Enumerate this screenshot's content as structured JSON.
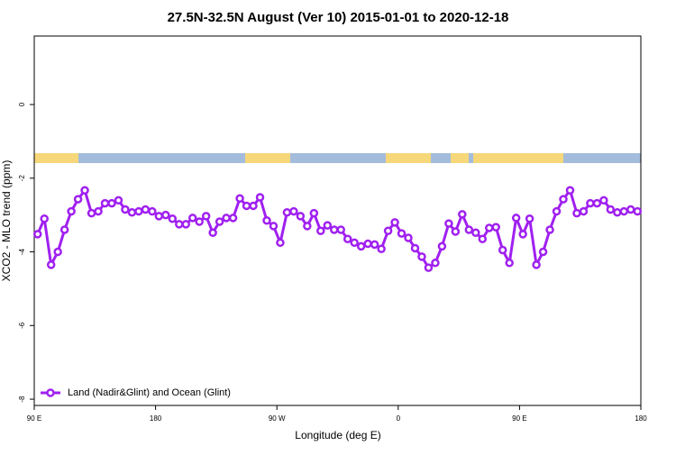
{
  "chart_data": {
    "type": "line",
    "title": "27.5N-32.5N August (Ver 10)   2015-01-01 to 2020-12-18",
    "x_label": "Longitude (deg E)",
    "y_label": "XCO2 - MLO trend (ppm)",
    "xlim": [
      90,
      540
    ],
    "xticks": [
      {
        "value": 90,
        "label": "90 E"
      },
      180,
      {
        "value": 270,
        "label": "90 W"
      },
      {
        "value": 360,
        "label": "0"
      },
      {
        "value": 450,
        "label": "90 E"
      },
      {
        "value": 540,
        "label": "180"
      }
    ],
    "ylim": [
      -8.17,
      1.86
    ],
    "yticks": [
      0,
      -2,
      -4,
      -6,
      -8
    ],
    "grid": false,
    "legend": "bottom-left",
    "x": [
      92.5,
      97.5,
      102.5,
      107.5,
      112.5,
      117.5,
      122.5,
      127.5,
      132.5,
      137.5,
      142.5,
      147.5,
      152.5,
      157.5,
      162.5,
      167.5,
      172.5,
      177.5,
      182.5,
      187.5,
      192.5,
      197.5,
      202.5,
      207.5,
      212.5,
      217.5,
      222.5,
      227.5,
      232.5,
      237.5,
      242.5,
      247.5,
      252.5,
      257.5,
      262.5,
      267.5,
      272.5,
      277.5,
      282.5,
      287.5,
      292.5,
      297.5,
      302.5,
      307.5,
      312.5,
      317.5,
      322.5,
      327.5,
      332.5,
      337.5,
      342.5,
      347.5,
      352.5,
      357.5,
      362.5,
      367.5,
      372.5,
      377.5,
      382.5,
      387.5,
      392.5,
      397.5,
      402.5,
      407.5,
      412.5,
      417.5,
      422.5,
      427.5,
      432.5,
      437.5,
      442.5,
      447.5,
      452.5,
      457.5,
      462.5,
      467.5,
      472.5,
      477.5,
      482.5,
      487.5,
      492.5,
      497.5,
      502.5,
      507.5,
      512.5,
      517.5,
      522.5,
      527.5,
      532.5,
      537.5
    ],
    "series": [
      {
        "name": "Land (Nadir&Glint) and Ocean (Glint)",
        "color": "#a020f0",
        "values": [
          -3.52,
          -3.1,
          -4.35,
          -4.0,
          -3.4,
          -2.9,
          -2.57,
          -2.33,
          -2.95,
          -2.9,
          -2.68,
          -2.68,
          -2.6,
          -2.85,
          -2.93,
          -2.9,
          -2.85,
          -2.9,
          -3.03,
          -3.0,
          -3.1,
          -3.25,
          -3.25,
          -3.08,
          -3.18,
          -3.03,
          -3.48,
          -3.18,
          -3.08,
          -3.08,
          -2.55,
          -2.75,
          -2.75,
          -2.52,
          -3.15,
          -3.3,
          -3.75,
          -2.93,
          -2.9,
          -3.03,
          -3.3,
          -2.95,
          -3.43,
          -3.28,
          -3.4,
          -3.4,
          -3.65,
          -3.75,
          -3.85,
          -3.78,
          -3.8,
          -3.92,
          -3.43,
          -3.2,
          -3.5,
          -3.62,
          -3.9,
          -4.13,
          -4.43,
          -4.3,
          -3.85,
          -3.23,
          -3.45,
          -2.98,
          -3.4,
          -3.48,
          -3.65,
          -3.35,
          -3.33,
          -3.95,
          -4.3,
          -3.08,
          -3.52,
          -3.1,
          -4.35,
          -4.0,
          -3.4,
          -2.9,
          -2.57,
          -2.33,
          -2.95,
          -2.9,
          -2.68,
          -2.68,
          -2.6,
          -2.85,
          -2.93,
          -2.9,
          -2.85,
          -2.9
        ]
      }
    ]
  }
}
